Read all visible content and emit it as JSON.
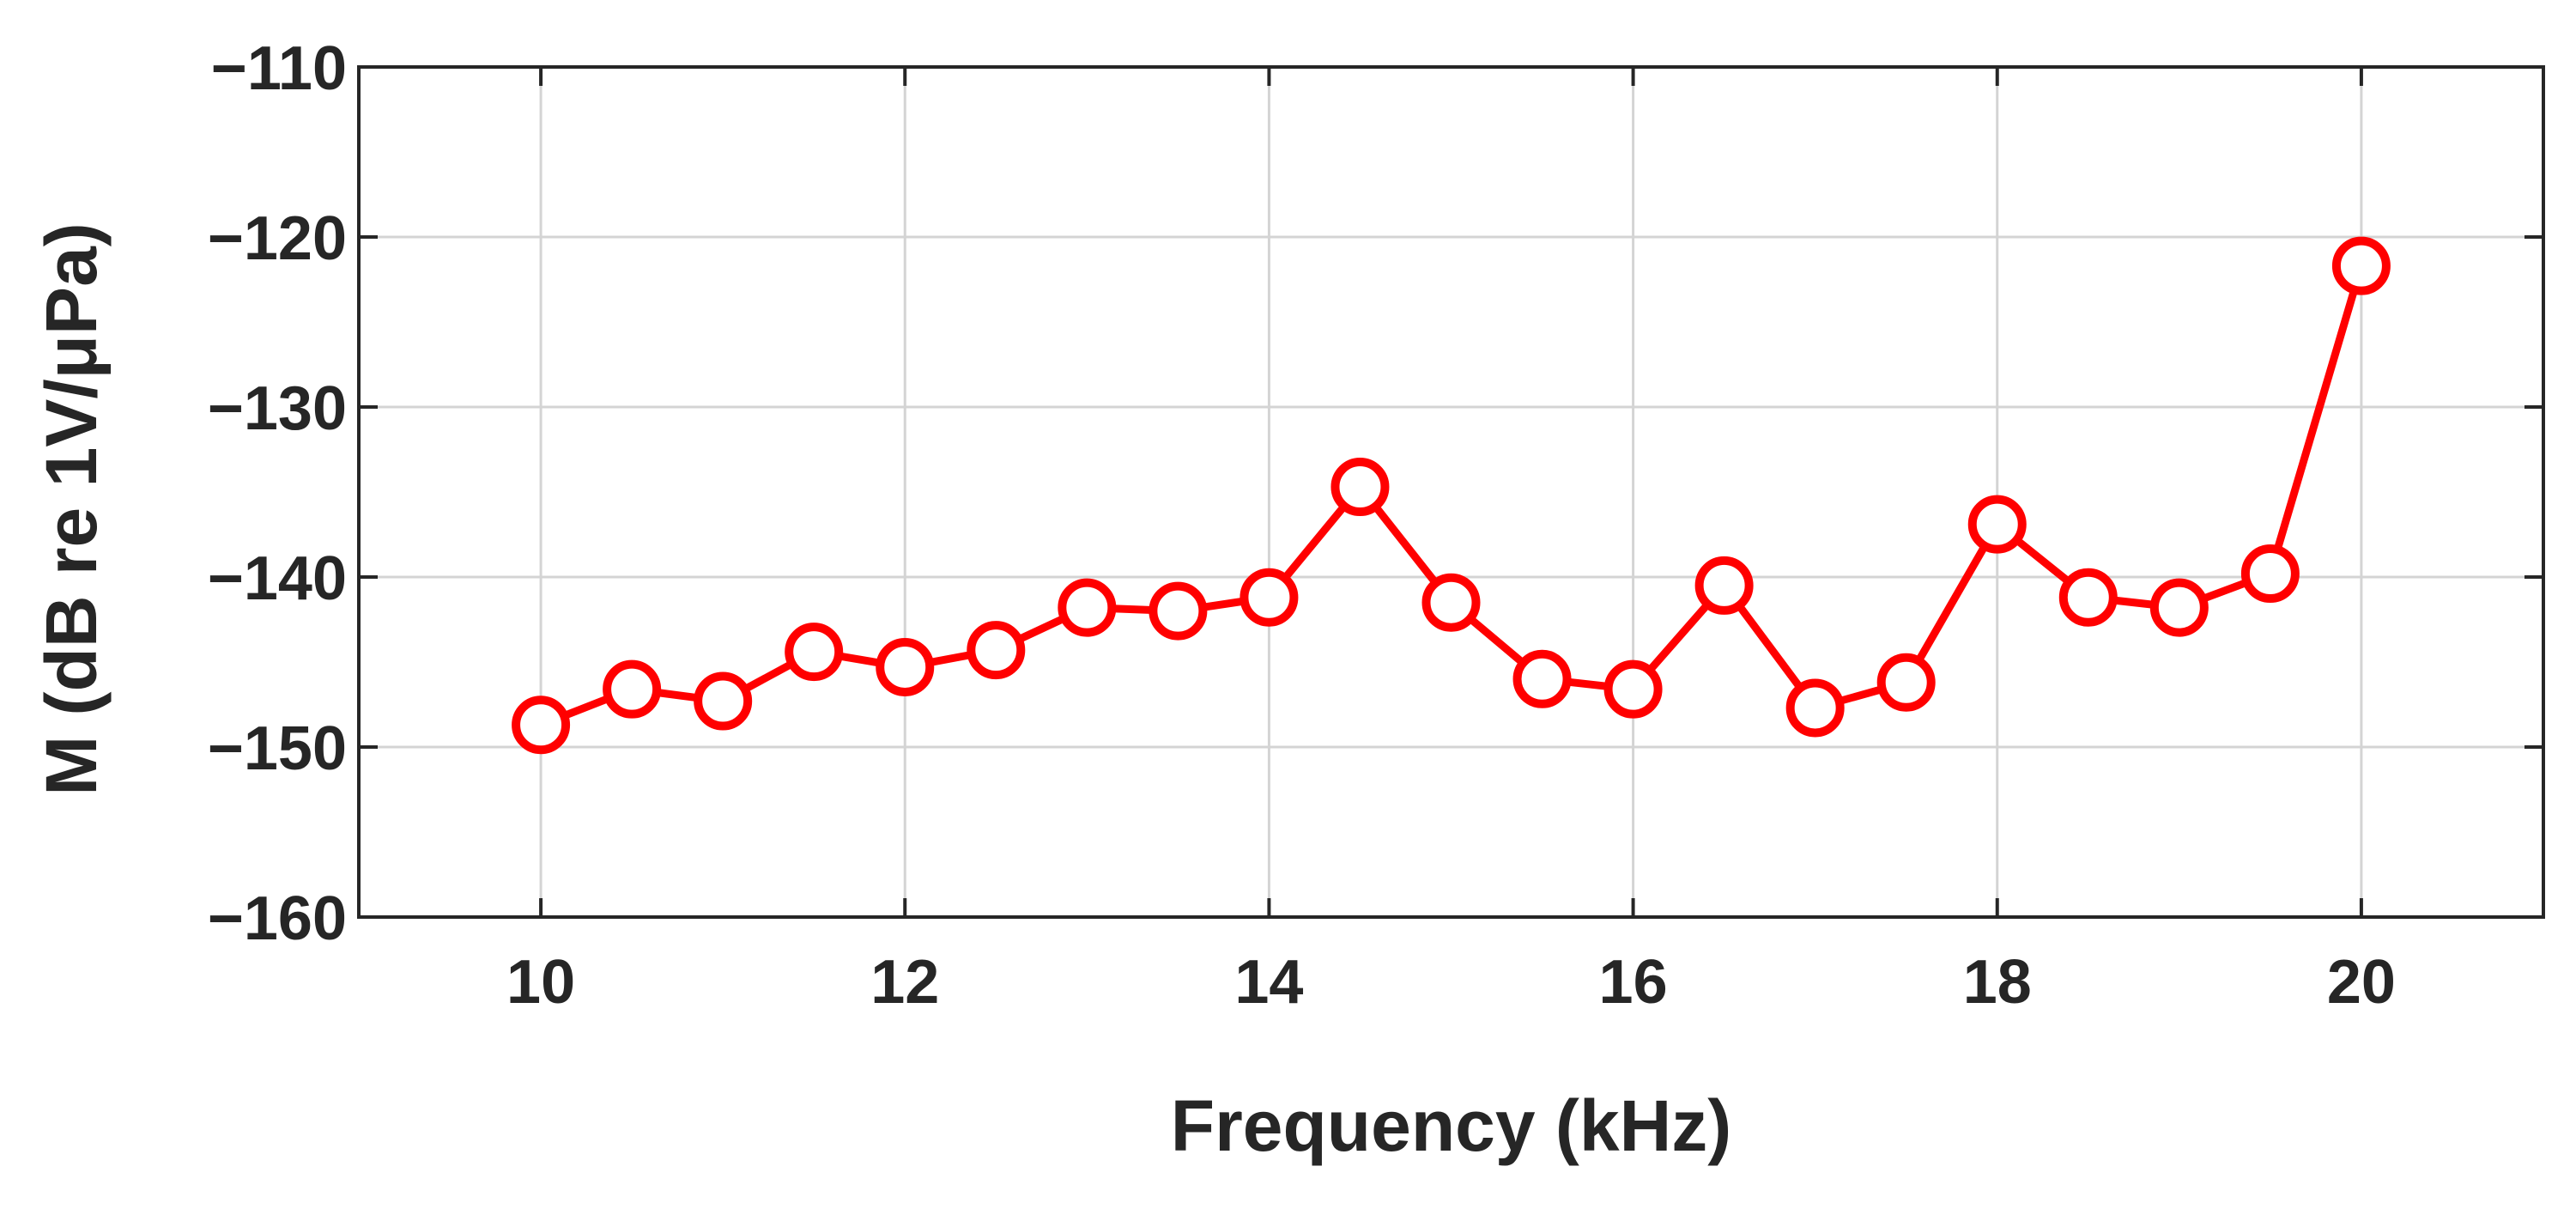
{
  "chart_data": {
    "type": "line",
    "xlabel": "Frequency (kHz)",
    "ylabel": "M (dB re 1V/μPa)",
    "xlim": [
      9,
      21
    ],
    "ylim": [
      -160,
      -110
    ],
    "xticks": [
      10,
      12,
      14,
      16,
      18,
      20
    ],
    "yticks": [
      -160,
      -150,
      -140,
      -130,
      -120,
      -110
    ],
    "xtick_labels": [
      "10",
      "12",
      "14",
      "16",
      "18",
      "20"
    ],
    "ytick_labels": [
      "−160",
      "−150",
      "−140",
      "−130",
      "−120",
      "−110"
    ],
    "grid": true,
    "marker": "circle",
    "color": "#ff0000",
    "x": [
      10,
      10.5,
      11,
      11.5,
      12,
      12.5,
      13,
      13.5,
      14,
      14.5,
      15,
      15.5,
      16,
      16.5,
      17,
      17.5,
      18,
      18.5,
      19,
      19.5,
      20
    ],
    "values": [
      -148.7,
      -146.6,
      -147.3,
      -144.4,
      -145.3,
      -144.3,
      -141.8,
      -142.0,
      -141.2,
      -134.7,
      -141.5,
      -146.0,
      -146.6,
      -140.5,
      -147.7,
      -146.2,
      -136.9,
      -141.2,
      -141.8,
      -139.8,
      -121.7
    ]
  }
}
